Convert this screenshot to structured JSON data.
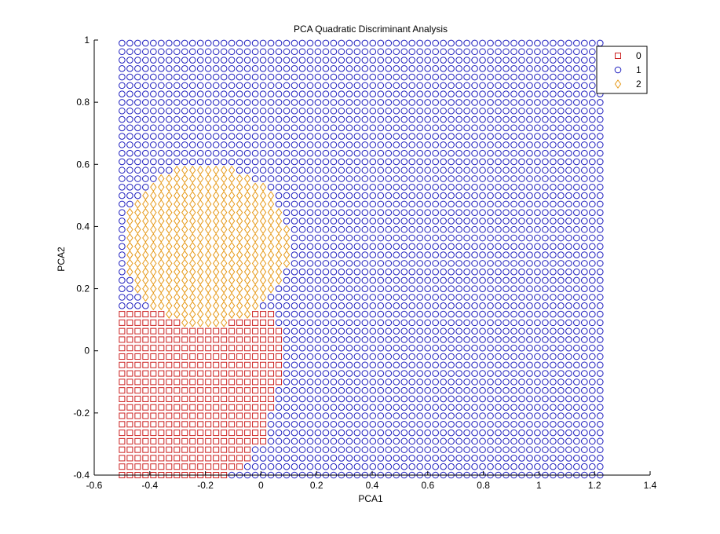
{
  "chart_data": {
    "type": "scatter",
    "title": "PCA Quadratic Discriminant Analysis",
    "xlabel": "PCA1",
    "ylabel": "PCA2",
    "xlim": [
      -0.6,
      1.4
    ],
    "ylim": [
      -0.4,
      1.0
    ],
    "xticks": [
      "-0.6",
      "-0.4",
      "-0.2",
      "0",
      "0.2",
      "0.4",
      "0.6",
      "0.8",
      "1",
      "1.2",
      "1.4"
    ],
    "yticks": [
      "-0.4",
      "-0.2",
      "0",
      "0.2",
      "0.4",
      "0.6",
      "0.8",
      "1"
    ],
    "grid": false,
    "legend_position": "top-right",
    "grid_points": {
      "x_start": -0.5,
      "x_end": 1.22,
      "x_count": 62,
      "y_start": -0.4,
      "y_end": 0.99,
      "y_count": 52
    },
    "series": [
      {
        "name": "0",
        "marker": "square",
        "color": "#cc2222"
      },
      {
        "name": "1",
        "marker": "circle",
        "color": "#1f1fbf"
      },
      {
        "name": "2",
        "marker": "diamond",
        "color": "#e69a1a"
      }
    ],
    "regions": {
      "class_2_circle": {
        "cx": -0.2,
        "cy": 0.34,
        "rx": 0.3,
        "ry": 0.26
      },
      "class_0_rows": [
        {
          "y_max": 0.12,
          "x_max": 0.05
        },
        {
          "y_max": 0.08,
          "x_max": 0.08
        },
        {
          "y_max": -0.01,
          "x_max": 0.08
        },
        {
          "y_max": -0.12,
          "x_max": 0.05
        },
        {
          "y_max": -0.2,
          "x_max": 0.02
        },
        {
          "y_max": -0.3,
          "x_max": -0.04
        },
        {
          "y_max": -0.37,
          "x_max": -0.06
        },
        {
          "y_max": -0.4,
          "x_max": -0.12
        }
      ],
      "class_0_x_min": -0.5
    }
  }
}
